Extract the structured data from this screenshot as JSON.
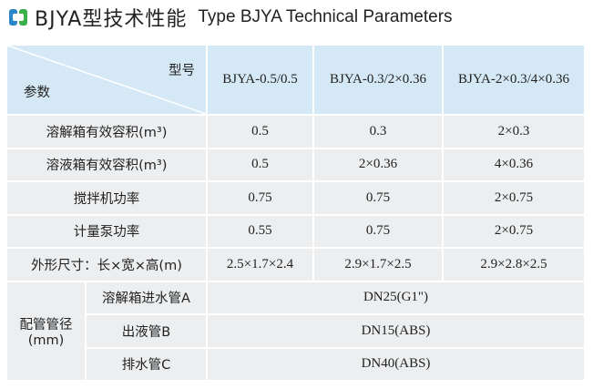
{
  "header": {
    "title_cn": "BJYA型技术性能",
    "title_en": "Type BJYA Technical Parameters"
  },
  "table": {
    "corner_top": "型号",
    "corner_bottom": "参数",
    "columns": [
      "BJYA-0.5/0.5",
      "BJYA-0.3/2×0.36",
      "BJYA-2×0.3/4×0.36"
    ],
    "rows": [
      {
        "label": "溶解箱有效容积(m³)",
        "cells": [
          "0.5",
          "0.3",
          "2×0.3"
        ]
      },
      {
        "label": "溶液箱有效容积(m³)",
        "cells": [
          "0.5",
          "2×0.36",
          "4×0.36"
        ]
      },
      {
        "label": "搅拌机功率",
        "cells": [
          "0.75",
          "0.75",
          "2×0.75"
        ]
      },
      {
        "label": "计量泵功率",
        "cells": [
          "0.55",
          "0.75",
          "2×0.75"
        ]
      },
      {
        "label": "外形尺寸：长×宽×高(m)",
        "cells": [
          "2.5×1.7×2.4",
          "2.9×1.7×2.5",
          "2.9×2.8×2.5"
        ]
      }
    ],
    "pipe_group": {
      "label_lines": [
        "配管管径",
        "(mm)"
      ],
      "rows": [
        {
          "label": "溶解箱进水管A",
          "value": "DN25(G1\")"
        },
        {
          "label": "出液管B",
          "value": "DN15(ABS)"
        },
        {
          "label": "排水管C",
          "value": "DN40(ABS)"
        }
      ]
    }
  }
}
